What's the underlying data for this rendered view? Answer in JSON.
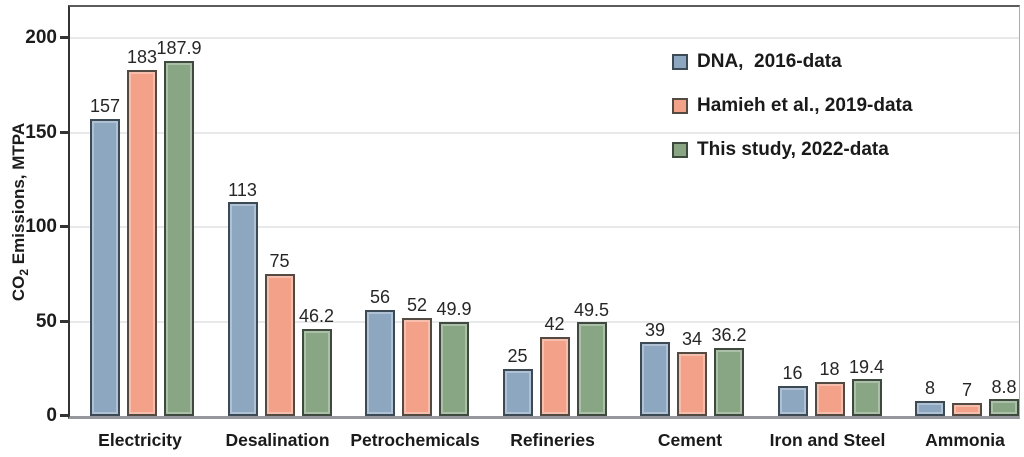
{
  "chart_data": {
    "type": "bar",
    "title": "",
    "ylabel": {
      "prefix": "CO",
      "sub": "2",
      "suffix": " Emissions, MTPA"
    },
    "yticks": [
      0,
      50,
      100,
      150,
      200
    ],
    "ylim": [
      0,
      215
    ],
    "grid": "horizontal gridlines at 50-unit intervals",
    "legend_position": "inside upper right",
    "categories": [
      "Electricity",
      "Desalination",
      "Petrochemicals",
      "Refineries",
      "Cement",
      "Iron and Steel",
      "Ammonia"
    ],
    "series": [
      {
        "name": "DNA,  2016-data",
        "color": "#8EA7C0",
        "border_color": "#3C4A56",
        "values": [
          157,
          113,
          56,
          25,
          39,
          16,
          8
        ],
        "labels": [
          "157",
          "113",
          "56",
          "25",
          "39",
          "16",
          "8"
        ]
      },
      {
        "name": "Hamieh et al., 2019-data",
        "color": "#F3A289",
        "border_color": "#554a42",
        "values": [
          183,
          75,
          52,
          42,
          34,
          18,
          7
        ],
        "labels": [
          "183",
          "75",
          "52",
          "42",
          "34",
          "18",
          "7"
        ]
      },
      {
        "name": "This study, 2022-data",
        "color": "#88A584",
        "border_color": "#3E4A3D",
        "values": [
          187.9,
          46.2,
          49.9,
          49.5,
          36.2,
          19.4,
          8.8
        ],
        "labels": [
          "187.9",
          "46.2",
          "49.9",
          "49.5",
          "36.2",
          "19.4",
          "8.8"
        ]
      }
    ]
  }
}
